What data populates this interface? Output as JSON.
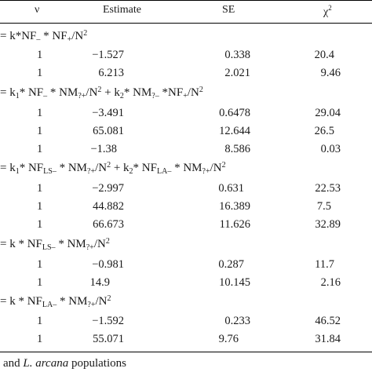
{
  "header": {
    "nu": "ν",
    "estimate": "Estimate",
    "se": "SE",
    "chi_base": "χ",
    "chi_sup": "2"
  },
  "models": [
    {
      "formula_parts": [
        "= k*NF",
        "–",
        " * NF",
        "+",
        "/N",
        "2"
      ],
      "rows": [
        {
          "nu": "1",
          "estimate": "−1.527",
          "se": "0.338",
          "chi2": "20.4"
        },
        {
          "nu": "1",
          "estimate": "6.213",
          "se": "2.021",
          "chi2": "9.46"
        }
      ]
    },
    {
      "formula_parts": [
        "= k",
        "1",
        "* NF",
        "–",
        " * NM",
        "?+",
        "/N",
        "2",
        " + k",
        "2",
        "* NM",
        "?–",
        " *NF",
        "+",
        "/N",
        "2"
      ],
      "rows": [
        {
          "nu": "1",
          "estimate": "−3.491",
          "se": "0.6478",
          "chi2": "29.04"
        },
        {
          "nu": "1",
          "estimate": "65.081",
          "se": "12.644",
          "chi2": "26.5"
        },
        {
          "nu": "1",
          "estimate": "−1.38",
          "se": "8.586",
          "chi2": "0.03"
        }
      ]
    },
    {
      "formula_parts": [
        "= k",
        "1",
        "* NF",
        "LS–",
        " * NM",
        "?+",
        "/N",
        "2",
        " + k",
        "2",
        "* NF",
        "LA–",
        " * NM",
        "?+",
        "/N",
        "2"
      ],
      "rows": [
        {
          "nu": "1",
          "estimate": "−2.997",
          "se": "0.631",
          "chi2": "22.53"
        },
        {
          "nu": "1",
          "estimate": "44.882",
          "se": "16.389",
          "chi2": "7.5"
        },
        {
          "nu": "1",
          "estimate": "66.673",
          "se": "11.626",
          "chi2": "32.89"
        }
      ]
    },
    {
      "formula_parts": [
        "= k * NF",
        "LS–",
        " * NM",
        "?+",
        "/N",
        "2"
      ],
      "rows": [
        {
          "nu": "1",
          "estimate": "−0.981",
          "se": "0.287",
          "chi2": "11.7"
        },
        {
          "nu": "1",
          "estimate": "14.9",
          "se": "10.145",
          "chi2": "2.16"
        }
      ]
    },
    {
      "formula_parts": [
        "= k * NF",
        "LA–",
        " * NM",
        "?+",
        "/N",
        "2"
      ],
      "rows": [
        {
          "nu": "1",
          "estimate": "−1.592",
          "se": "0.233",
          "chi2": "46.52"
        },
        {
          "nu": "1",
          "estimate": "55.071",
          "se": "9.76",
          "chi2": "31.84"
        }
      ]
    }
  ],
  "footer": {
    "prefix": "and ",
    "species": "L. arcana",
    "suffix": " populations"
  }
}
